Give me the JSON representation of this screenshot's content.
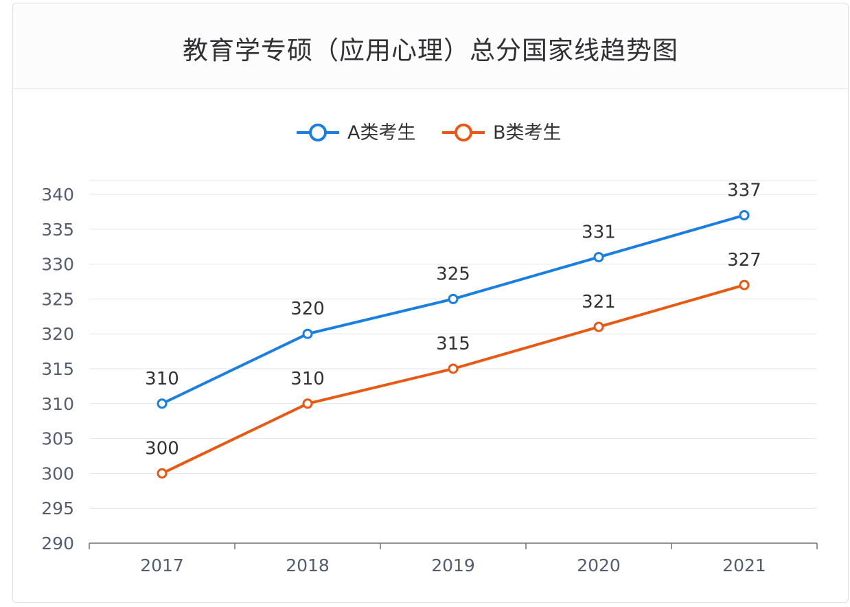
{
  "card": {
    "title": "教育学专硕（应用心理）总分国家线趋势图"
  },
  "chart_data": {
    "type": "line",
    "title": "教育学专硕（应用心理）总分国家线趋势图",
    "categories": [
      "2017",
      "2018",
      "2019",
      "2020",
      "2021"
    ],
    "series": [
      {
        "name": "A类考生",
        "color": "#1a7fe0",
        "values": [
          310,
          320,
          325,
          331,
          337
        ]
      },
      {
        "name": "B类考生",
        "color": "#e85a14",
        "values": [
          300,
          310,
          315,
          321,
          327
        ]
      }
    ],
    "ylim": [
      290,
      340
    ],
    "yticks": [
      290,
      295,
      300,
      305,
      310,
      315,
      320,
      325,
      330,
      335,
      340
    ],
    "grid": true,
    "legend": "top-center",
    "xlabel": "",
    "ylabel": ""
  }
}
